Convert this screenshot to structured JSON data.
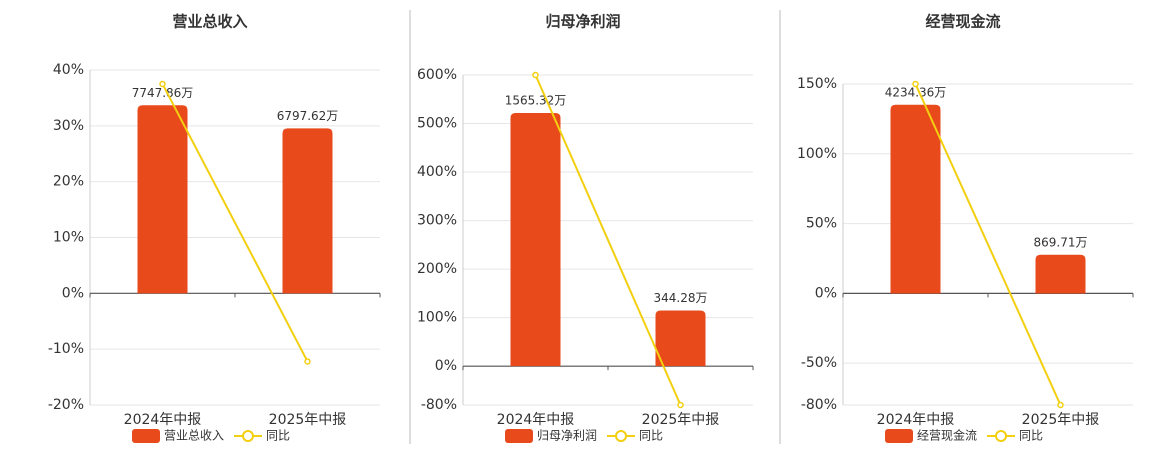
{
  "chart_data": [
    {
      "type": "bar-line",
      "title": "营业总收入",
      "categories": [
        "2024年中报",
        "2025年中报"
      ],
      "series": [
        {
          "name": "营业总收入",
          "color": "#e84a1c",
          "axis": "y2",
          "values": [
            7747.86,
            6797.62
          ],
          "value_labels": [
            "7747.86万",
            "6797.62万"
          ]
        },
        {
          "name": "同比",
          "color": "#f2cf0f",
          "values": [
            37.5,
            -12.2
          ]
        }
      ],
      "ylim": [
        -20,
        40
      ],
      "yticks": [
        {
          "value": -20,
          "label": "-20%"
        },
        {
          "value": -10,
          "label": "-10%"
        },
        {
          "value": 0,
          "label": "0%"
        },
        {
          "value": 10,
          "label": "10%"
        },
        {
          "value": 20,
          "label": "20%"
        },
        {
          "value": 30,
          "label": "30%"
        },
        {
          "value": 40,
          "label": "40%"
        }
      ],
      "y2lim": [
        -4600,
        9200
      ],
      "grid": true
    },
    {
      "type": "bar-line",
      "title": "归母净利润",
      "categories": [
        "2024年中报",
        "2025年中报"
      ],
      "series": [
        {
          "name": "归母净利润",
          "color": "#e84a1c",
          "axis": "y2",
          "values": [
            1565.32,
            344.28
          ],
          "value_labels": [
            "1565.32万",
            "344.28万"
          ]
        },
        {
          "name": "同比",
          "color": "#f2cf0f",
          "values": [
            600,
            -80
          ]
        }
      ],
      "ylim": [
        -80,
        600
      ],
      "yticks": [
        {
          "value": -80,
          "label": "-80%"
        },
        {
          "value": 0,
          "label": "0%"
        },
        {
          "value": 100,
          "label": "100%"
        },
        {
          "value": 200,
          "label": "200%"
        },
        {
          "value": 300,
          "label": "300%"
        },
        {
          "value": 400,
          "label": "400%"
        },
        {
          "value": 500,
          "label": "500%"
        },
        {
          "value": 600,
          "label": "600%"
        }
      ],
      "y2lim": [
        -240,
        1800
      ],
      "grid": true
    },
    {
      "type": "bar-line",
      "title": "经营现金流",
      "categories": [
        "2024年中报",
        "2025年中报"
      ],
      "series": [
        {
          "name": "经营现金流",
          "color": "#e84a1c",
          "axis": "y2",
          "values": [
            4234.36,
            869.71
          ],
          "value_labels": [
            "4234.36万",
            "869.71万"
          ]
        },
        {
          "name": "同比",
          "color": "#f2cf0f",
          "values": [
            150,
            -80
          ]
        }
      ],
      "ylim": [
        -80,
        150
      ],
      "yticks": [
        {
          "value": -80,
          "label": "-80%"
        },
        {
          "value": -50,
          "label": "-50%"
        },
        {
          "value": 0,
          "label": "0%"
        },
        {
          "value": 50,
          "label": "50%"
        },
        {
          "value": 100,
          "label": "100%"
        },
        {
          "value": 150,
          "label": "150%"
        }
      ],
      "y2lim": [
        -2500,
        4700
      ],
      "grid": true
    }
  ]
}
